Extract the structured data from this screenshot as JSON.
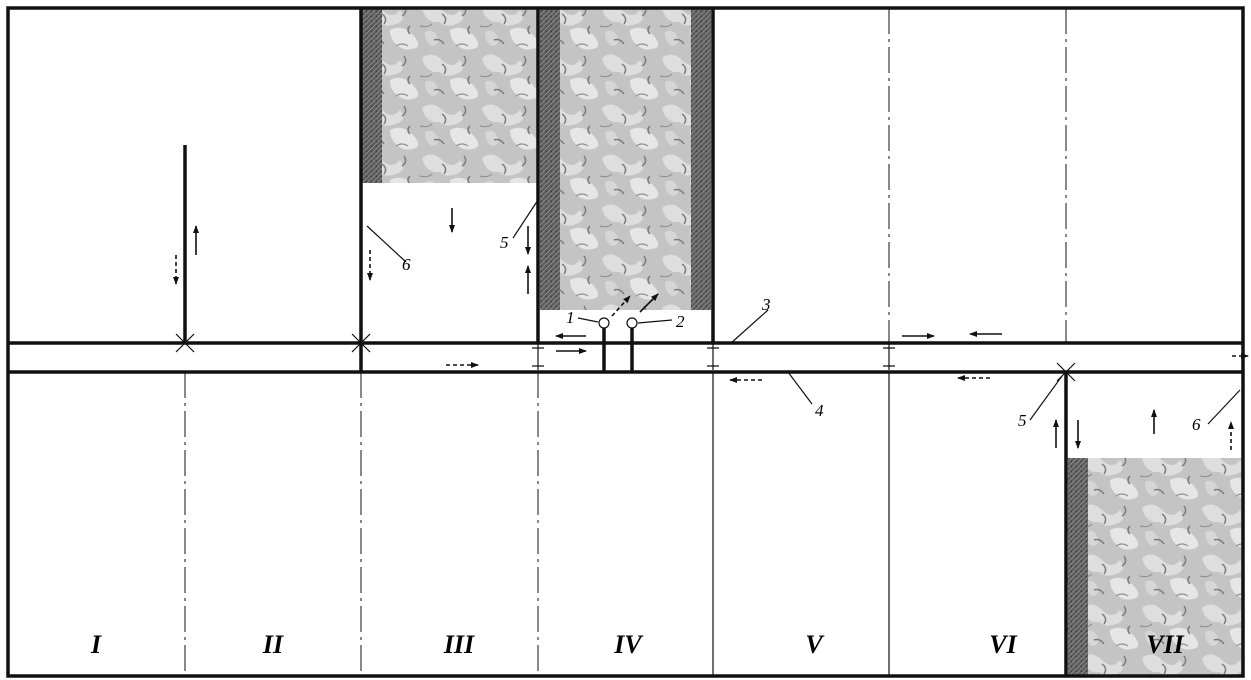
{
  "panels": [
    {
      "label": "I"
    },
    {
      "label": "II"
    },
    {
      "label": "III"
    },
    {
      "label": "IV"
    },
    {
      "label": "V"
    },
    {
      "label": "VI"
    },
    {
      "label": "VII"
    }
  ],
  "callouts": [
    {
      "label": "1"
    },
    {
      "label": "2"
    },
    {
      "label": "3"
    },
    {
      "label": "4"
    },
    {
      "label": "5"
    },
    {
      "label": "6"
    },
    {
      "label": "5"
    },
    {
      "label": "6"
    }
  ]
}
